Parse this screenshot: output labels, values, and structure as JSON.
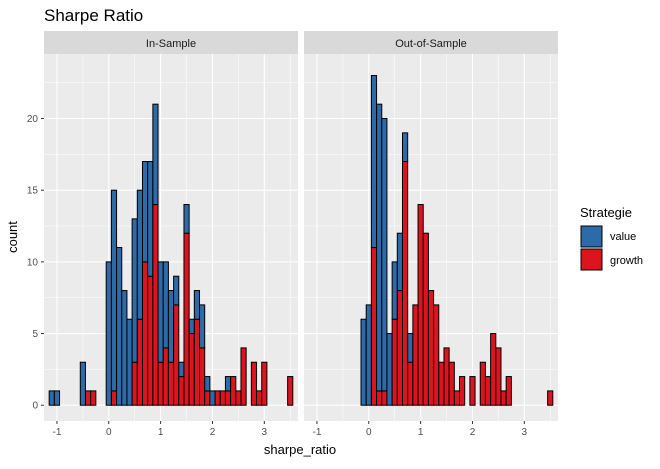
{
  "chart_data": {
    "type": "bar",
    "subtype": "faceted stacked histogram",
    "title": "Sharpe Ratio",
    "xlabel": "sharpe_ratio",
    "ylabel": "count",
    "xlim": [
      -1.25,
      3.65
    ],
    "ylim": [
      -1.1,
      24.5
    ],
    "x_ticks": [
      -1,
      0,
      1,
      2,
      3
    ],
    "x_tick_labels": [
      "-1",
      "0",
      "1",
      "2",
      "3"
    ],
    "y_ticks": [
      0,
      5,
      10,
      15,
      20
    ],
    "y_tick_labels": [
      "0",
      "5",
      "10",
      "15",
      "20"
    ],
    "grid": true,
    "legend_position": "right",
    "legend_title": "Strategie",
    "bin_width": 0.1,
    "colors": {
      "value": "#2c6aa8",
      "growth": "#db1420",
      "panel_bg": "#ebebeb",
      "strip_bg": "#d9d9d9",
      "grid": "#ffffff",
      "outline": "#000000"
    },
    "facets": [
      {
        "name": "In-Sample",
        "bin_centers": [
          -1.1,
          -1.0,
          -0.9,
          -0.8,
          -0.7,
          -0.6,
          -0.5,
          -0.4,
          -0.3,
          -0.2,
          -0.1,
          0.0,
          0.1,
          0.2,
          0.3,
          0.4,
          0.5,
          0.6,
          0.7,
          0.8,
          0.9,
          1.0,
          1.1,
          1.2,
          1.3,
          1.4,
          1.5,
          1.6,
          1.7,
          1.8,
          1.9,
          2.0,
          2.1,
          2.2,
          2.3,
          2.4,
          2.5,
          2.6,
          2.7,
          2.8,
          2.9,
          3.0,
          3.1,
          3.2,
          3.3,
          3.4,
          3.5
        ],
        "series": [
          {
            "name": "value",
            "values": [
              1,
              1,
              0,
              0,
              0,
              0,
              3,
              0,
              0,
              0,
              0,
              10,
              14,
              11,
              8,
              6,
              10,
              9,
              7,
              8,
              7,
              7,
              6,
              5,
              2,
              1,
              2,
              1,
              2,
              3,
              1,
              1,
              0,
              0,
              1,
              0,
              0,
              0,
              0,
              0,
              0,
              0,
              0,
              0,
              0,
              0,
              0
            ]
          },
          {
            "name": "growth",
            "values": [
              0,
              0,
              0,
              0,
              0,
              0,
              0,
              1,
              1,
              0,
              0,
              0,
              1,
              0,
              0,
              0,
              3,
              6,
              10,
              9,
              14,
              3,
              4,
              3,
              7,
              2,
              12,
              5,
              6,
              4,
              1,
              0,
              1,
              1,
              1,
              2,
              1,
              4,
              0,
              3,
              1,
              3,
              0,
              0,
              0,
              0,
              2
            ]
          }
        ]
      },
      {
        "name": "Out-of-Sample",
        "bin_centers": [
          -1.1,
          -1.0,
          -0.9,
          -0.8,
          -0.7,
          -0.6,
          -0.5,
          -0.4,
          -0.3,
          -0.2,
          -0.1,
          0.0,
          0.1,
          0.2,
          0.3,
          0.4,
          0.5,
          0.6,
          0.7,
          0.8,
          0.9,
          1.0,
          1.1,
          1.2,
          1.3,
          1.4,
          1.5,
          1.6,
          1.7,
          1.8,
          1.9,
          2.0,
          2.1,
          2.2,
          2.3,
          2.4,
          2.5,
          2.6,
          2.7,
          2.8,
          2.9,
          3.0,
          3.1,
          3.2,
          3.3,
          3.4,
          3.5
        ],
        "series": [
          {
            "name": "value",
            "values": [
              0,
              0,
              0,
              0,
              0,
              0,
              0,
              0,
              0,
              0,
              6,
              7,
              12,
              20,
              19,
              5,
              4,
              4,
              2,
              2,
              0,
              0,
              0,
              0,
              0,
              0,
              0,
              0,
              0,
              0,
              0,
              0,
              0,
              0,
              0,
              0,
              0,
              0,
              0,
              0,
              0,
              0,
              0,
              0,
              0,
              0,
              0
            ]
          },
          {
            "name": "growth",
            "values": [
              0,
              0,
              0,
              0,
              0,
              0,
              0,
              0,
              0,
              0,
              0,
              0,
              11,
              1,
              1,
              0,
              6,
              8,
              17,
              3,
              7,
              14,
              12,
              8,
              7,
              3,
              4,
              3,
              1,
              2,
              0,
              2,
              0,
              3,
              2,
              5,
              4,
              1,
              2,
              0,
              0,
              0,
              0,
              0,
              0,
              0,
              1
            ]
          }
        ]
      }
    ]
  }
}
